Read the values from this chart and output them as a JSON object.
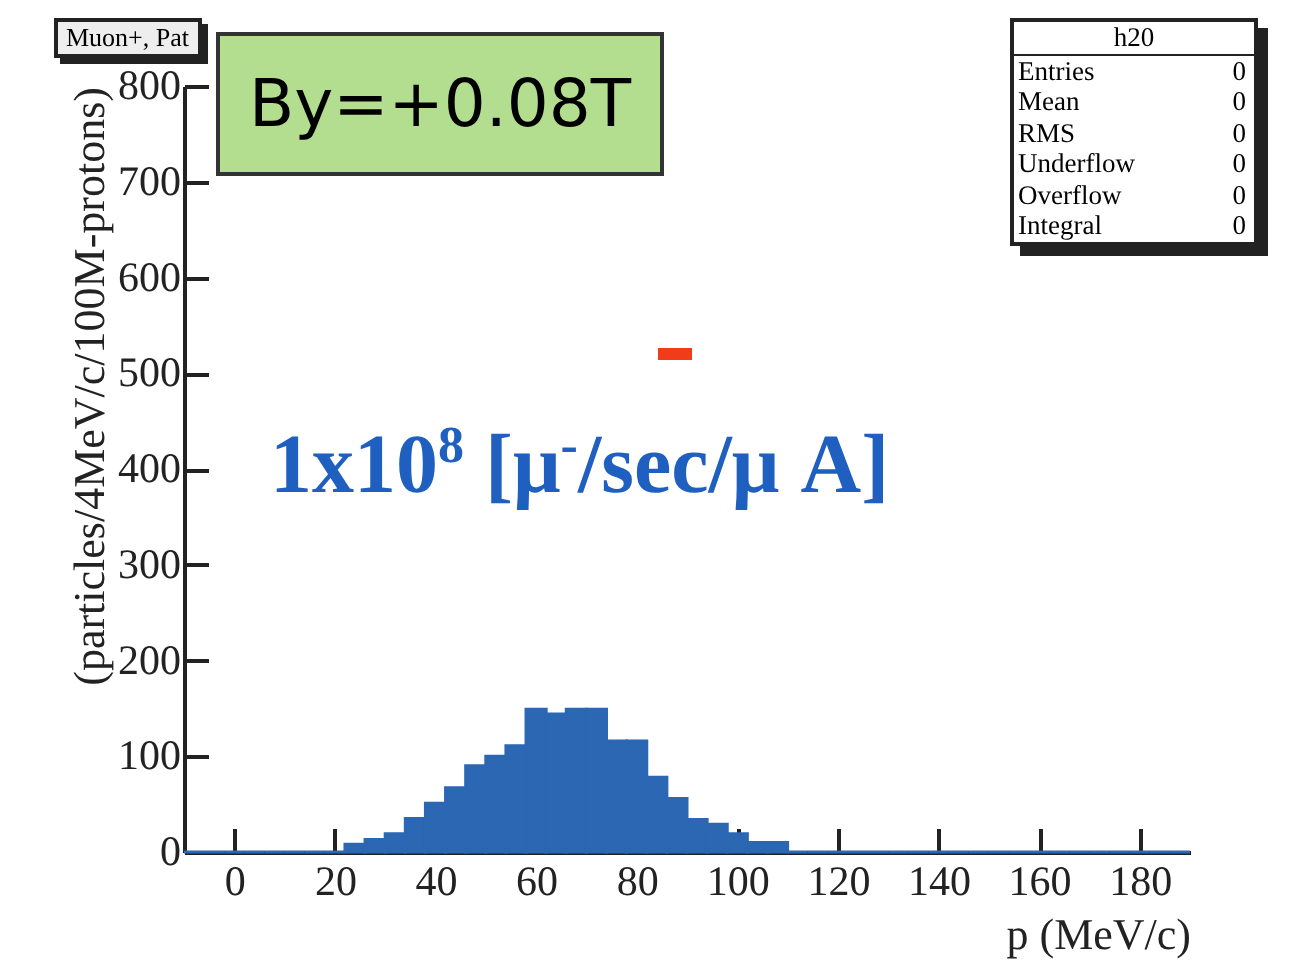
{
  "chart_data": {
    "type": "histogram",
    "title": "Muon+, Pat",
    "xlabel": "p (MeV/c)",
    "ylabel": "(particles/4MeV/c/100M-protons)",
    "bins": [
      -10,
      -6,
      -2,
      2,
      6,
      10,
      14,
      18,
      22,
      26,
      30,
      34,
      38,
      42,
      46,
      50,
      54,
      58,
      62,
      66,
      70,
      74,
      78,
      82,
      86,
      90,
      94,
      98,
      102,
      106,
      110,
      114,
      118,
      122,
      126,
      130,
      134,
      138,
      142,
      146,
      150,
      154,
      158,
      162,
      166,
      170,
      174,
      178,
      182,
      186,
      190
    ],
    "values": [
      0,
      0,
      0,
      0,
      0,
      0,
      0,
      0,
      8,
      13,
      19,
      35,
      51,
      67,
      90,
      100,
      111,
      149,
      144,
      149,
      149,
      116,
      116,
      78,
      56,
      34,
      29,
      19,
      10,
      10,
      0,
      0,
      0,
      0,
      0,
      0,
      0,
      0,
      0,
      0,
      0,
      0,
      0,
      0,
      0,
      0,
      0,
      0,
      0,
      0
    ],
    "color": "#2b67b3",
    "xlim": [
      -10,
      190
    ],
    "xticks": [
      0,
      20,
      40,
      60,
      80,
      100,
      120,
      140,
      160,
      180
    ],
    "ylim": [
      0,
      800
    ],
    "yticks": [
      0,
      100,
      200,
      300,
      400,
      500,
      600,
      700,
      800
    ],
    "grid": false,
    "annotations": [
      "By=+0.08T",
      "1x10$^{8}$ [μ$^{-}$/sec/μ A]",
      "h20",
      "Entries 0",
      "Mean 0",
      "RMS 0",
      "Underflow 0",
      "Overflow 0",
      "Integral 0"
    ]
  }
}
